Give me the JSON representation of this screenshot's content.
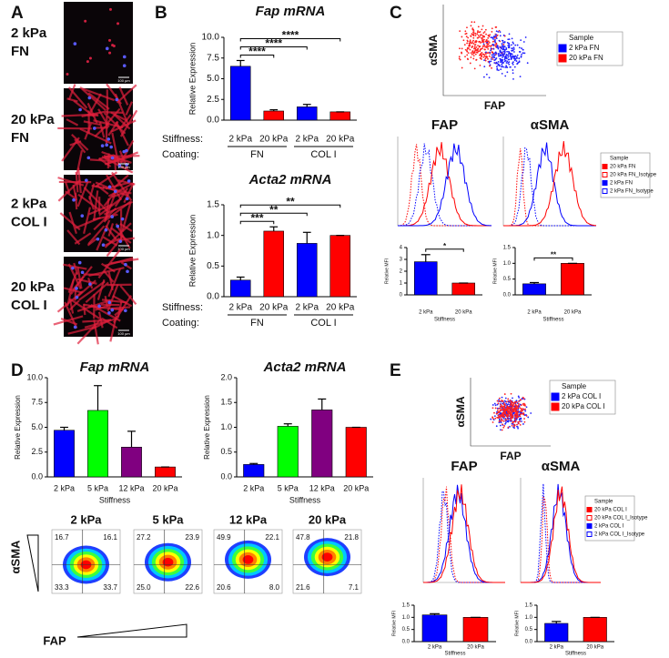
{
  "panels": [
    "A",
    "B",
    "C",
    "D",
    "E"
  ],
  "images": [
    {
      "line1": "2 kPa",
      "line2": "FN",
      "scale": "100 µm"
    },
    {
      "line1": "20 kPa",
      "line2": "FN",
      "scale": "100 µm"
    },
    {
      "line1": "2 kPa",
      "line2": "COL I",
      "scale": "100 µm"
    },
    {
      "line1": "20 kPa",
      "line2": "COL I",
      "scale": "100 µm"
    }
  ],
  "chart_data": [
    {
      "type": "bar",
      "title": "Fap mRNA",
      "ylabel": "Relative Expression",
      "categories": [
        "2 kPa",
        "20 kPa",
        "2 kPa",
        "20 kPa"
      ],
      "values": [
        6.5,
        1.1,
        1.6,
        1.0
      ],
      "errors": [
        0.7,
        0.15,
        0.3,
        0
      ],
      "colors": [
        "#0000ff",
        "#ff0000",
        "#0000ff",
        "#ff0000"
      ],
      "ylim": [
        0,
        10
      ],
      "yticks": [
        {
          "value": 0,
          "label": "0.0"
        },
        {
          "value": 2.5,
          "label": "2.5"
        },
        {
          "value": 5,
          "label": "5.0"
        },
        {
          "value": 7.5,
          "label": "7.5"
        },
        {
          "value": 10,
          "label": "10.0"
        }
      ],
      "significance": [
        {
          "label": "****",
          "pair": [
            0,
            1
          ]
        },
        {
          "label": "****",
          "pair": [
            0,
            2
          ]
        },
        {
          "label": "****",
          "pair": [
            0,
            3
          ]
        }
      ],
      "stiffness_label": "Stiffness:",
      "coating_label": "Coating:",
      "coatings": [
        "FN",
        "COL I"
      ]
    },
    {
      "type": "bar",
      "title": "Acta2 mRNA",
      "ylabel": "Relative Expression",
      "categories": [
        "2 kPa",
        "20 kPa",
        "2 kPa",
        "20 kPa"
      ],
      "values": [
        0.27,
        1.07,
        0.87,
        1.0
      ],
      "errors": [
        0.05,
        0.07,
        0.18,
        0
      ],
      "colors": [
        "#0000ff",
        "#ff0000",
        "#0000ff",
        "#ff0000"
      ],
      "ylim": [
        0,
        1.5
      ],
      "yticks": [
        {
          "value": 0,
          "label": "0.0"
        },
        {
          "value": 0.5,
          "label": "0.5"
        },
        {
          "value": 1,
          "label": "1.0"
        },
        {
          "value": 1.5,
          "label": "1.5"
        }
      ],
      "significance": [
        {
          "label": "***",
          "pair": [
            0,
            1
          ]
        },
        {
          "label": "**",
          "pair": [
            0,
            2
          ]
        },
        {
          "label": "**",
          "pair": [
            0,
            3
          ]
        }
      ],
      "stiffness_label": "Stiffness:",
      "coating_label": "Coating:",
      "coatings": [
        "FN",
        "COL I"
      ]
    },
    {
      "type": "bar",
      "ylabel": "Relative MFI",
      "xlabel": "Stiffness",
      "categories": [
        "2 kPa",
        "20 kPa"
      ],
      "values": [
        2.8,
        1.0
      ],
      "errors": [
        0.6,
        0
      ],
      "colors": [
        "#0000ff",
        "#ff0000"
      ],
      "ylim": [
        0,
        4
      ],
      "yticks": [
        0,
        1,
        2,
        3,
        4
      ],
      "significance": [
        {
          "label": "*",
          "pair": [
            0,
            1
          ]
        }
      ]
    },
    {
      "type": "bar",
      "ylabel": "Relative MFI",
      "xlabel": "Stiffness",
      "categories": [
        "2 kPa",
        "20 kPa"
      ],
      "values": [
        0.35,
        1.0
      ],
      "errors": [
        0.04,
        0
      ],
      "colors": [
        "#0000ff",
        "#ff0000"
      ],
      "ylim": [
        0,
        1.5
      ],
      "yticks": [
        {
          "value": 0,
          "label": "0.0"
        },
        {
          "value": 0.5,
          "label": "0.5"
        },
        {
          "value": 1,
          "label": "1.0"
        },
        {
          "value": 1.5,
          "label": "1.5"
        }
      ],
      "significance": [
        {
          "label": "**",
          "pair": [
            0,
            1
          ]
        }
      ]
    },
    {
      "type": "bar",
      "title": "Fap mRNA",
      "ylabel": "Relative Expression",
      "xlabel": "Stiffness",
      "categories": [
        "2 kPa",
        "5 kPa",
        "12 kPa",
        "20 kPa"
      ],
      "values": [
        4.7,
        6.7,
        3.0,
        1.0
      ],
      "errors": [
        0.3,
        2.5,
        1.6,
        0
      ],
      "colors": [
        "#0000ff",
        "#00ff00",
        "#800080",
        "#ff0000"
      ],
      "ylim": [
        0,
        10
      ],
      "yticks": [
        {
          "value": 0,
          "label": "0.0"
        },
        {
          "value": 2.5,
          "label": "2.5"
        },
        {
          "value": 5,
          "label": "5.0"
        },
        {
          "value": 7.5,
          "label": "7.5"
        },
        {
          "value": 10,
          "label": "10.0"
        }
      ]
    },
    {
      "type": "bar",
      "title": "Acta2 mRNA",
      "ylabel": "Relative Expression",
      "xlabel": "Stiffness",
      "categories": [
        "2 kPa",
        "5 kPa",
        "12 kPa",
        "20 kPa"
      ],
      "values": [
        0.25,
        1.02,
        1.35,
        1.0
      ],
      "errors": [
        0.02,
        0.05,
        0.22,
        0
      ],
      "colors": [
        "#0000ff",
        "#00ff00",
        "#800080",
        "#ff0000"
      ],
      "ylim": [
        0,
        2
      ],
      "yticks": [
        {
          "value": 0,
          "label": "0.0"
        },
        {
          "value": 0.5,
          "label": "0.5"
        },
        {
          "value": 1,
          "label": "1.0"
        },
        {
          "value": 1.5,
          "label": "1.5"
        },
        {
          "value": 2,
          "label": "2.0"
        }
      ]
    },
    {
      "type": "bar",
      "ylabel": "Relative MFI",
      "xlabel": "Stiffness",
      "categories": [
        "2 kPa",
        "20 kPa"
      ],
      "values": [
        1.1,
        1.0
      ],
      "errors": [
        0.05,
        0
      ],
      "colors": [
        "#0000ff",
        "#ff0000"
      ],
      "ylim": [
        0,
        1.5
      ],
      "yticks": [
        {
          "value": 0,
          "label": "0.0"
        },
        {
          "value": 0.5,
          "label": "0.5"
        },
        {
          "value": 1,
          "label": "1.0"
        },
        {
          "value": 1.5,
          "label": "1.5"
        }
      ]
    },
    {
      "type": "bar",
      "ylabel": "Relative MFI",
      "xlabel": "Stiffness",
      "categories": [
        "2 kPa",
        "20 kPa"
      ],
      "values": [
        0.75,
        1.0
      ],
      "errors": [
        0.08,
        0
      ],
      "colors": [
        "#0000ff",
        "#ff0000"
      ],
      "ylim": [
        0,
        1.5
      ],
      "yticks": [
        {
          "value": 0,
          "label": "0.0"
        },
        {
          "value": 0.5,
          "label": "0.5"
        },
        {
          "value": 1,
          "label": "1.0"
        },
        {
          "value": 1.5,
          "label": "1.5"
        }
      ]
    }
  ],
  "panel_c": {
    "scatter": {
      "y_label": "αSMA",
      "x_label": "FAP",
      "legend_title": "Sample",
      "legend": [
        {
          "name": "2 kPa FN",
          "color": "#0000ff"
        },
        {
          "name": "20 kPa FN",
          "color": "#ff0000"
        }
      ]
    },
    "histograms": [
      {
        "title": "FAP"
      },
      {
        "title": "αSMA"
      }
    ],
    "hist_legend_title": "Sample",
    "hist_legend": [
      {
        "name": "20 kPa FN",
        "color": "#ff0000"
      },
      {
        "name": "20 kPa FN_Isotype",
        "color": "#ff0000"
      },
      {
        "name": "2 kPa FN",
        "color": "#0000ff"
      },
      {
        "name": "2 kPa FN_Isotype",
        "color": "#0000ff"
      }
    ]
  },
  "panel_e": {
    "scatter": {
      "y_label": "αSMA",
      "x_label": "FAP",
      "legend_title": "Sample",
      "legend": [
        {
          "name": "2 kPa COL I",
          "color": "#0000ff"
        },
        {
          "name": "20 kPa COL I",
          "color": "#ff0000"
        }
      ]
    },
    "histograms": [
      {
        "title": "FAP"
      },
      {
        "title": "αSMA"
      }
    ],
    "hist_legend_title": "Sample",
    "hist_legend": [
      {
        "name": "20 kPa COL I",
        "color": "#ff0000"
      },
      {
        "name": "20 kPa COL I_Isotype",
        "color": "#ff0000"
      },
      {
        "name": "2 kPa COL I",
        "color": "#0000ff"
      },
      {
        "name": "2 kPa COL I_Isotype",
        "color": "#0000ff"
      }
    ]
  },
  "panel_d_flow": {
    "y_label": "αSMA",
    "x_label": "FAP",
    "plots": [
      {
        "title": "2 kPa",
        "quadrants": [
          "16.7",
          "16.1",
          "33.3",
          "33.7"
        ]
      },
      {
        "title": "5 kPa",
        "quadrants": [
          "27.2",
          "23.9",
          "25.0",
          "22.6"
        ]
      },
      {
        "title": "12 kPa",
        "quadrants": [
          "49.9",
          "22.1",
          "20.6",
          "8.0"
        ]
      },
      {
        "title": "20 kPa",
        "quadrants": [
          "47.8",
          "21.8",
          "21.6",
          "7.1"
        ]
      }
    ]
  }
}
